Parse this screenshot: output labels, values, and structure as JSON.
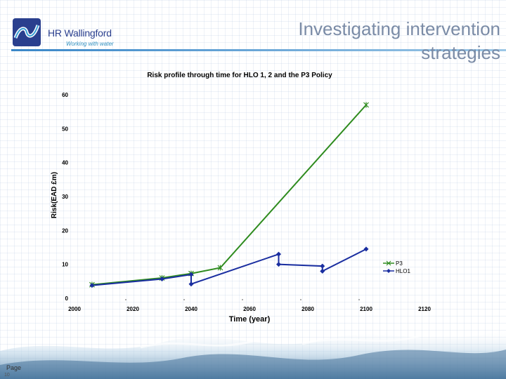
{
  "logo": {
    "name": "HR Wallingford",
    "tagline": "Working with water",
    "mark_color": "#2a3f8e",
    "wave_color": "#3aa0d8"
  },
  "slide": {
    "title": "Investigating intervention strategies",
    "page_label": "Page",
    "page_number": "10"
  },
  "chart_data": {
    "type": "line",
    "title": "Risk profile through time for HLO 1, 2 and the P3 Policy",
    "xlabel": "Time (year)",
    "ylabel": "Risk(EAD £m)",
    "xlim": [
      2000,
      2120
    ],
    "ylim": [
      0,
      60
    ],
    "xticks": [
      2000,
      2020,
      2040,
      2060,
      2080,
      2100,
      2120
    ],
    "yticks": [
      0,
      10,
      20,
      30,
      40,
      50,
      60
    ],
    "grid": false,
    "legend": "right",
    "series": [
      {
        "name": "P3",
        "color": "#2e8b1e",
        "marker": "x",
        "points": [
          [
            2006,
            4
          ],
          [
            2030,
            6
          ],
          [
            2040,
            7.3
          ],
          [
            2050,
            9
          ],
          [
            2100,
            57
          ]
        ]
      },
      {
        "name": "HLO1",
        "color": "#1a2ea0",
        "marker": "diamond",
        "points": [
          [
            2006,
            3.8
          ],
          [
            2030,
            5.7
          ],
          [
            2040,
            7
          ],
          [
            2040,
            4.2
          ],
          [
            2070,
            13
          ],
          [
            2070,
            10
          ],
          [
            2085,
            9.5
          ],
          [
            2085,
            8
          ],
          [
            2100,
            14.5
          ]
        ]
      }
    ]
  }
}
